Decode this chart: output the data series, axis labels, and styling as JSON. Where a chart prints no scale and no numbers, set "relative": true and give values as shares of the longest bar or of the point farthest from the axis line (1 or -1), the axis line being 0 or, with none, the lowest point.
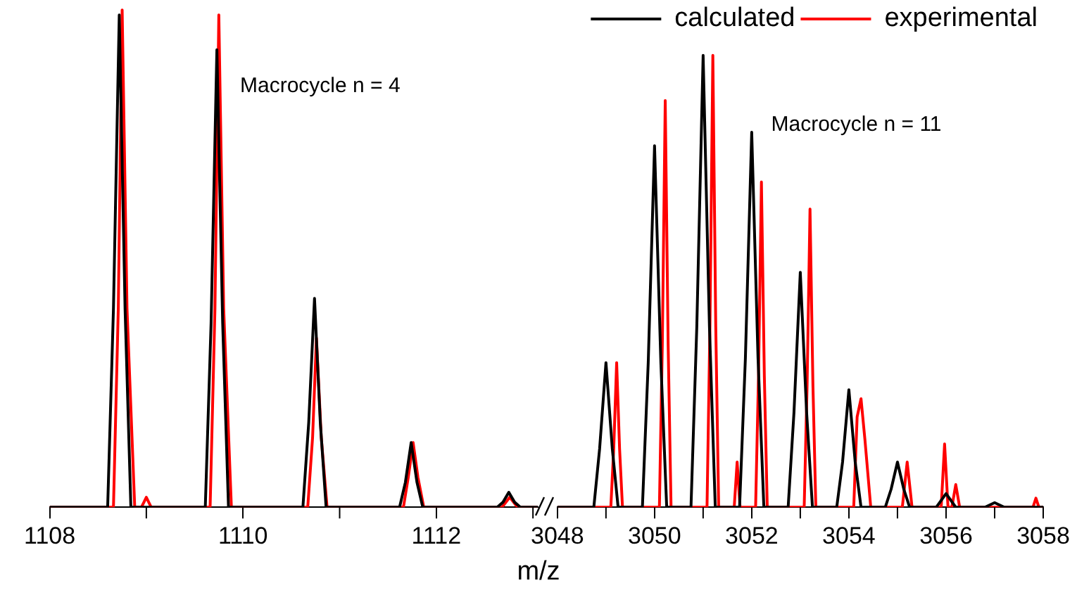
{
  "chart_data": [
    {
      "type": "line",
      "relative": true,
      "xlabel": "m/z",
      "annotations": [
        "Macrocycle n = 4"
      ],
      "xlim": [
        1108,
        1113.05
      ],
      "xticks": [
        1108,
        {
          "value": 1109,
          "label": null
        },
        1110,
        {
          "value": 1111,
          "label": null
        },
        1112,
        {
          "value": 1113,
          "label": null
        }
      ],
      "legend": false,
      "grid": false,
      "marker": "none",
      "series": [
        {
          "color": "#000000",
          "x": [
            1108,
            1108.6,
            1108.66,
            1108.72,
            1108.78,
            1108.84,
            1109.61,
            1109.67,
            1109.73,
            1109.79,
            1109.85,
            1110.62,
            1110.68,
            1110.74,
            1110.8,
            1110.86,
            1111.62,
            1111.68,
            1111.74,
            1111.8,
            1111.86,
            1112.63,
            1112.69,
            1112.75,
            1112.81,
            1112.87,
            1113.05
          ],
          "values": [
            0,
            0,
            0.4,
            0.99,
            0.4,
            0,
            0,
            0.37,
            0.92,
            0.37,
            0,
            0,
            0.17,
            0.42,
            0.17,
            0,
            0,
            0.05,
            0.13,
            0.05,
            0,
            0,
            0.01,
            0.03,
            0.01,
            0,
            0
          ]
        },
        {
          "color": "#ff0000",
          "x": [
            1108,
            1108.66,
            1108.71,
            1108.75,
            1108.8,
            1108.88,
            1108.95,
            1109,
            1109.05,
            1109.66,
            1109.71,
            1109.75,
            1109.8,
            1109.88,
            1110.67,
            1110.72,
            1110.76,
            1110.81,
            1110.87,
            1111.66,
            1111.71,
            1111.76,
            1111.81,
            1111.87,
            1112.68,
            1112.76,
            1112.84,
            1113.05
          ],
          "values": [
            0,
            0,
            0.4,
            1,
            0.4,
            0,
            0,
            0.02,
            0,
            0,
            0.4,
            0.99,
            0.4,
            0,
            0,
            0.14,
            0.34,
            0.14,
            0,
            0,
            0.06,
            0.13,
            0.06,
            0,
            0,
            0.02,
            0,
            0
          ]
        }
      ]
    },
    {
      "type": "line",
      "relative": true,
      "annotations": [
        "Macrocycle n = 11"
      ],
      "xlim": [
        3048,
        3058
      ],
      "xticks": [
        3048,
        {
          "value": 3049,
          "label": null
        },
        3050,
        {
          "value": 3051,
          "label": null
        },
        3052,
        {
          "value": 3053,
          "label": null
        },
        3054,
        {
          "value": 3055,
          "label": null
        },
        3056,
        {
          "value": 3057,
          "label": null
        },
        3058
      ],
      "legend": "top right",
      "grid": false,
      "marker": "none",
      "series": [
        {
          "name": "calculated",
          "color": "#000000",
          "x": [
            3048,
            3048.75,
            3048.87,
            3049,
            3049.13,
            3049.25,
            3049.75,
            3049.87,
            3050,
            3050.13,
            3050.25,
            3050.75,
            3050.87,
            3051,
            3051.13,
            3051.25,
            3051.75,
            3051.87,
            3052,
            3052.13,
            3052.25,
            3052.75,
            3052.87,
            3053,
            3053.13,
            3053.25,
            3053.75,
            3053.87,
            3054,
            3054.13,
            3054.25,
            3054.75,
            3054.87,
            3055,
            3055.13,
            3055.25,
            3055.8,
            3056,
            3056.2,
            3056.8,
            3057,
            3057.2,
            3058
          ],
          "values": [
            0,
            0,
            0.13,
            0.32,
            0.13,
            0,
            0,
            0.32,
            0.8,
            0.32,
            0,
            0,
            0.4,
            1,
            0.4,
            0,
            0,
            0.33,
            0.83,
            0.33,
            0,
            0,
            0.21,
            0.52,
            0.21,
            0,
            0,
            0.1,
            0.26,
            0.1,
            0,
            0,
            0.04,
            0.1,
            0.04,
            0,
            0,
            0.03,
            0,
            0,
            0.01,
            0,
            0
          ]
        },
        {
          "name": "experimental",
          "color": "#ff0000",
          "x": [
            3048,
            3049.1,
            3049.16,
            3049.22,
            3049.28,
            3049.34,
            3050.1,
            3050.16,
            3050.22,
            3050.28,
            3050.34,
            3051.08,
            3051.14,
            3051.2,
            3051.26,
            3051.32,
            3051.64,
            3051.7,
            3051.76,
            3052.08,
            3052.14,
            3052.2,
            3052.26,
            3052.32,
            3053.08,
            3053.14,
            3053.2,
            3053.26,
            3053.32,
            3054.1,
            3054.17,
            3054.25,
            3054.33,
            3054.45,
            3055.1,
            3055.2,
            3055.3,
            3055.9,
            3055.97,
            3056.04,
            3056.12,
            3056.2,
            3056.28,
            3057.79,
            3057.85,
            3057.91,
            3058
          ],
          "values": [
            0,
            0,
            0.13,
            0.32,
            0.13,
            0,
            0,
            0.36,
            0.9,
            0.36,
            0,
            0,
            0.4,
            1,
            0.4,
            0,
            0,
            0.1,
            0,
            0,
            0.29,
            0.72,
            0.29,
            0,
            0,
            0.27,
            0.66,
            0.27,
            0,
            0,
            0.2,
            0.24,
            0.15,
            0,
            0,
            0.1,
            0,
            0,
            0.14,
            0,
            0,
            0.05,
            0,
            0,
            0.02,
            0,
            0
          ]
        }
      ]
    }
  ]
}
